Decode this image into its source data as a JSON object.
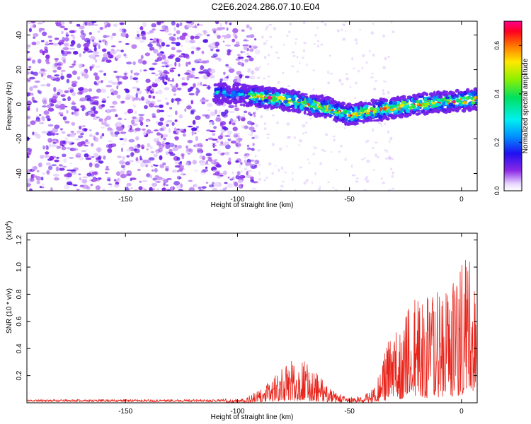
{
  "figure_title": "C2E6.2024.286.07.10.E04",
  "chart_data": [
    {
      "type": "heatmap",
      "title": "C2E6.2024.286.07.10.E04",
      "xlabel": "Height of straight line (km)",
      "ylabel": "Frequency (Hz)",
      "xlim": [
        -194,
        7
      ],
      "ylim": [
        -50,
        48
      ],
      "xticks": [
        -150,
        -100,
        -50,
        0
      ],
      "xtick_labels": [
        "-150",
        "-100",
        "-50",
        "0"
      ],
      "yticks": [
        -40,
        -20,
        0,
        20,
        40
      ],
      "ytick_labels": [
        "-40",
        "-20",
        "0",
        "20",
        "40"
      ],
      "grid": false,
      "colorbar": {
        "label": "Normalized spectral amplitude",
        "range": [
          0,
          0.7
        ],
        "ticks": [
          0,
          0.2,
          0.4,
          0.6
        ],
        "tick_labels": [
          "0.0",
          "0.2",
          "0.4",
          "0.6"
        ],
        "colormap": "rainbow (white - violet - blue - cyan - green - yellow - orange - red - magenta)"
      },
      "features": [
        {
          "name": "broadband noise",
          "x_range": [
            -194,
            -97
          ],
          "y_range": [
            -50,
            48
          ],
          "amplitude": 0.06
        },
        {
          "name": "signal band",
          "x_range": [
            -110,
            7
          ],
          "center_frequency": [
            [
              -110,
              7
            ],
            [
              -80,
              3
            ],
            [
              -60,
              -2
            ],
            [
              -50,
              -6
            ],
            [
              -40,
              -4
            ],
            [
              -20,
              0
            ],
            [
              0,
              2
            ],
            [
              7,
              3
            ]
          ],
          "half_width_hz": 6,
          "peak_amplitude": 0.7
        }
      ]
    },
    {
      "type": "line",
      "xlabel": "Height of straight line (km)",
      "ylabel": "SNR (10 * v/v)",
      "y_multiplier": "(x10^4)",
      "xlim": [
        -194,
        7
      ],
      "ylim": [
        0,
        1.25
      ],
      "xticks": [
        -150,
        -100,
        -50,
        0
      ],
      "xtick_labels": [
        "-150",
        "-100",
        "-50",
        "0"
      ],
      "yticks": [
        0.2,
        0.4,
        0.6,
        0.8,
        1.0,
        1.2
      ],
      "ytick_labels": [
        "0.2",
        "0.4",
        "0.6",
        "0.8",
        "1.0",
        "1.2"
      ],
      "grid": false,
      "series": [
        {
          "color": "#e8231a",
          "envelope_x": [
            -194,
            -110,
            -100,
            -95,
            -90,
            -85,
            -80,
            -75,
            -72,
            -68,
            -64,
            -60,
            -56,
            -52,
            -48,
            -44,
            -40,
            -36,
            -33,
            -30,
            -25,
            -20,
            -15,
            -10,
            -5,
            -2,
            2,
            5,
            7
          ],
          "envelope_y": [
            0.02,
            0.02,
            0.03,
            0.05,
            0.09,
            0.16,
            0.24,
            0.31,
            0.31,
            0.27,
            0.2,
            0.12,
            0.07,
            0.05,
            0.04,
            0.05,
            0.1,
            0.25,
            0.43,
            0.5,
            0.65,
            0.75,
            0.75,
            0.85,
            0.8,
            1.0,
            1.2,
            0.9,
            0.85
          ]
        }
      ]
    }
  ]
}
